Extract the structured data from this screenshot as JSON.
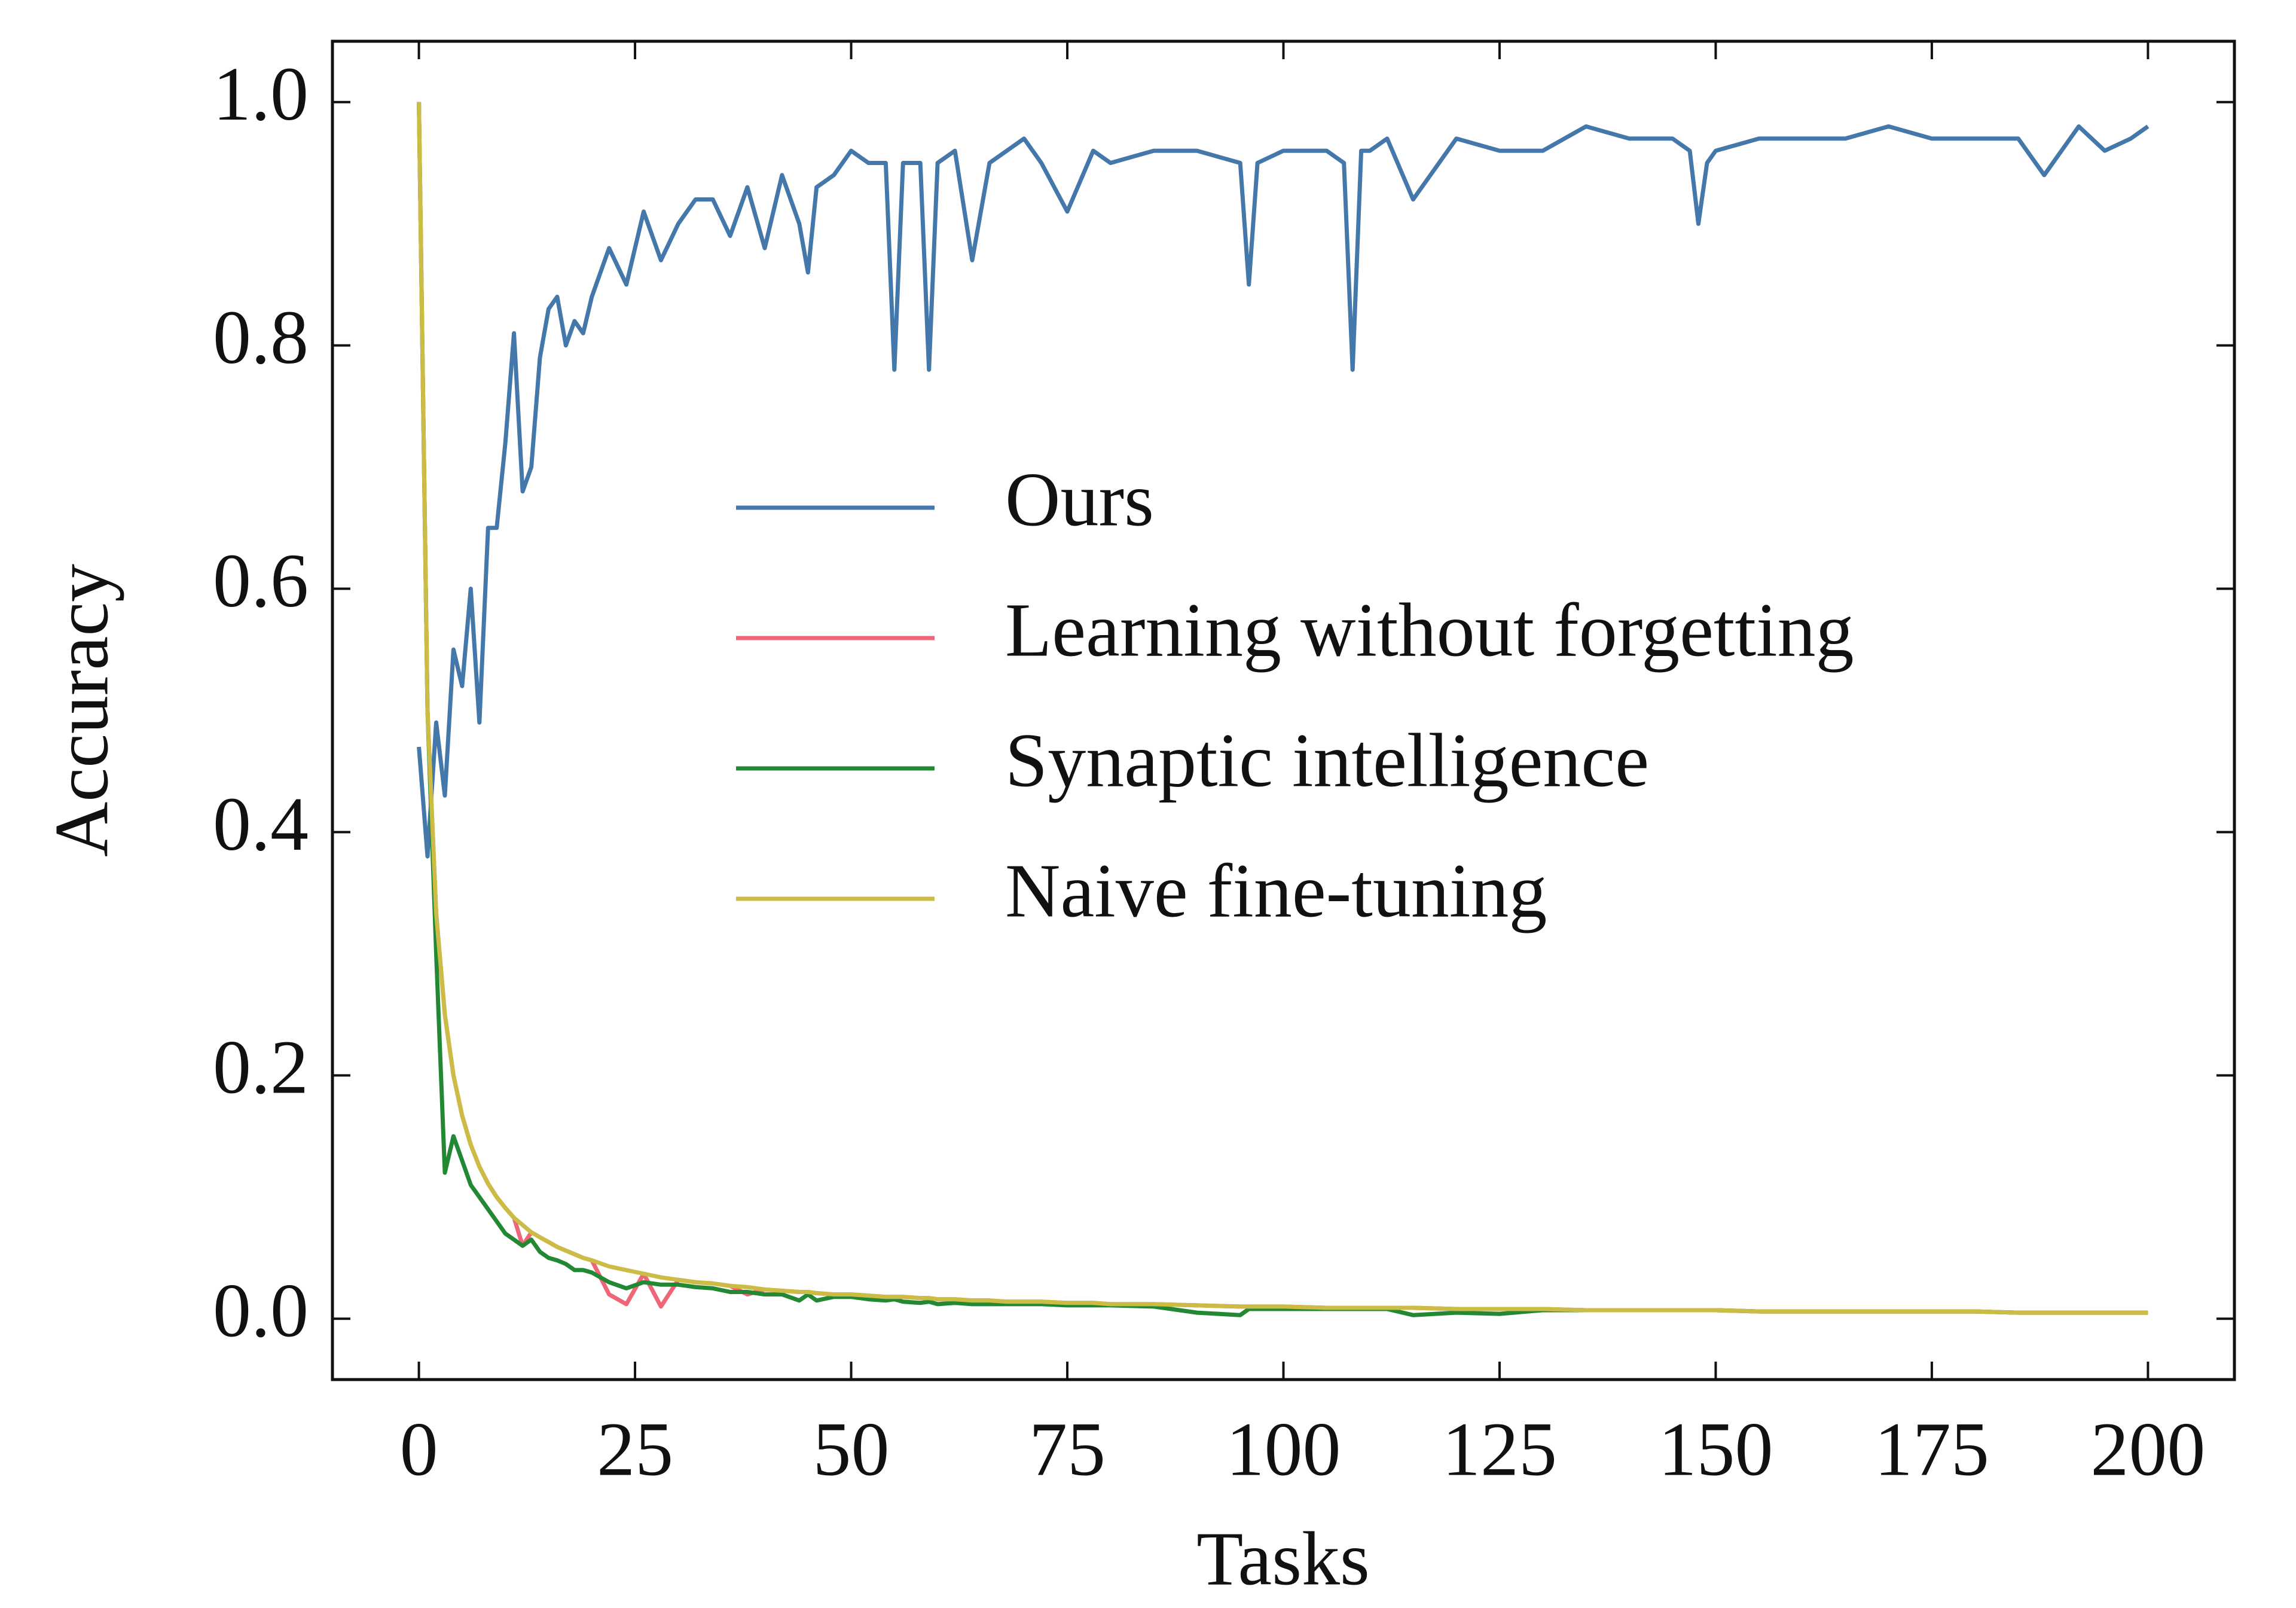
{
  "chart_data": {
    "type": "line",
    "x_label": "Tasks",
    "y_label": "Accuracy",
    "x": [
      0,
      1,
      2,
      3,
      4,
      5,
      6,
      7,
      8,
      9,
      10,
      11,
      12,
      13,
      14,
      15,
      16,
      17,
      18,
      19,
      20,
      22,
      24,
      26,
      28,
      30,
      32,
      34,
      36,
      38,
      40,
      42,
      44,
      45,
      46,
      48,
      50,
      52,
      54,
      55,
      56,
      58,
      59,
      60,
      62,
      64,
      66,
      68,
      70,
      72,
      75,
      78,
      80,
      85,
      90,
      95,
      96,
      97,
      100,
      105,
      107,
      108,
      109,
      110,
      112,
      115,
      120,
      125,
      130,
      135,
      140,
      145,
      147,
      148,
      149,
      150,
      155,
      160,
      165,
      170,
      175,
      180,
      185,
      188,
      190,
      192,
      195,
      198,
      200
    ],
    "series": [
      {
        "name": "Ours",
        "color": "#4477AA",
        "values": [
          0.47,
          0.38,
          0.49,
          0.43,
          0.55,
          0.52,
          0.6,
          0.49,
          0.65,
          0.65,
          0.72,
          0.81,
          0.68,
          0.7,
          0.79,
          0.83,
          0.84,
          0.8,
          0.82,
          0.81,
          0.84,
          0.88,
          0.85,
          0.91,
          0.87,
          0.9,
          0.92,
          0.92,
          0.89,
          0.93,
          0.88,
          0.94,
          0.9,
          0.86,
          0.93,
          0.94,
          0.96,
          0.95,
          0.95,
          0.78,
          0.95,
          0.95,
          0.78,
          0.95,
          0.96,
          0.87,
          0.95,
          0.96,
          0.97,
          0.95,
          0.91,
          0.96,
          0.95,
          0.96,
          0.96,
          0.95,
          0.85,
          0.95,
          0.96,
          0.96,
          0.95,
          0.78,
          0.96,
          0.96,
          0.97,
          0.92,
          0.97,
          0.96,
          0.96,
          0.98,
          0.97,
          0.97,
          0.96,
          0.9,
          0.95,
          0.96,
          0.97,
          0.97,
          0.97,
          0.98,
          0.97,
          0.97,
          0.97,
          0.94,
          0.96,
          0.98,
          0.96,
          0.97,
          0.98
        ]
      },
      {
        "name": "Learning without forgetting",
        "color": "#EE6677",
        "values": [
          1,
          0.5,
          0.333,
          0.25,
          0.2,
          0.167,
          0.143,
          0.125,
          0.111,
          0.1,
          0.091,
          0.083,
          0.06,
          0.071,
          0.067,
          0.063,
          0.059,
          0.056,
          0.053,
          0.05,
          0.048,
          0.02,
          0.012,
          0.037,
          0.01,
          0.032,
          0.03,
          0.029,
          0.027,
          0.02,
          0.024,
          0.023,
          0.022,
          0.022,
          0.021,
          0.02,
          0.02,
          0.019,
          0.018,
          0.018,
          0.018,
          0.017,
          0.017,
          0.016,
          0.016,
          0.015,
          0.015,
          0.014,
          0.014,
          0.014,
          0.013,
          0.013,
          0.012,
          0.012,
          0.011,
          0.01,
          0.01,
          0.01,
          0.01,
          0.009,
          0.009,
          0.009,
          0.009,
          0.009,
          0.009,
          0.009,
          0.008,
          0.008,
          0.008,
          0.007,
          0.007,
          0.007,
          0.007,
          0.007,
          0.007,
          0.007,
          0.006,
          0.006,
          0.006,
          0.006,
          0.006,
          0.006,
          0.005,
          0.005,
          0.005,
          0.005,
          0.005,
          0.005,
          0.005
        ]
      },
      {
        "name": "Synaptic intelligence",
        "color": "#228833",
        "values": [
          1,
          0.5,
          0.3,
          0.12,
          0.15,
          0.13,
          0.11,
          0.1,
          0.09,
          0.08,
          0.07,
          0.065,
          0.06,
          0.065,
          0.055,
          0.05,
          0.048,
          0.045,
          0.04,
          0.04,
          0.038,
          0.03,
          0.025,
          0.03,
          0.028,
          0.028,
          0.026,
          0.025,
          0.022,
          0.022,
          0.02,
          0.02,
          0.015,
          0.02,
          0.015,
          0.018,
          0.018,
          0.016,
          0.015,
          0.016,
          0.014,
          0.013,
          0.014,
          0.012,
          0.013,
          0.012,
          0.012,
          0.012,
          0.012,
          0.012,
          0.011,
          0.011,
          0.011,
          0.01,
          0.005,
          0.003,
          0.008,
          0.008,
          0.008,
          0.008,
          0.008,
          0.008,
          0.008,
          0.008,
          0.008,
          0.003,
          0.005,
          0.004,
          0.007,
          0.007,
          0.007,
          0.007,
          0.007,
          0.007,
          0.007,
          0.007,
          0.006,
          0.006,
          0.006,
          0.006,
          0.006,
          0.006,
          0.005,
          0.005,
          0.005,
          0.005,
          0.005,
          0.005,
          0.005
        ]
      },
      {
        "name": "Naive fine-tuning",
        "color": "#CCBB44",
        "values": [
          1,
          0.5,
          0.333,
          0.25,
          0.2,
          0.167,
          0.143,
          0.125,
          0.111,
          0.1,
          0.091,
          0.083,
          0.077,
          0.071,
          0.067,
          0.063,
          0.059,
          0.056,
          0.053,
          0.05,
          0.048,
          0.043,
          0.04,
          0.037,
          0.034,
          0.032,
          0.03,
          0.029,
          0.027,
          0.026,
          0.024,
          0.023,
          0.022,
          0.022,
          0.021,
          0.02,
          0.02,
          0.019,
          0.018,
          0.018,
          0.018,
          0.017,
          0.017,
          0.016,
          0.016,
          0.015,
          0.015,
          0.014,
          0.014,
          0.014,
          0.013,
          0.013,
          0.012,
          0.012,
          0.011,
          0.01,
          0.01,
          0.01,
          0.01,
          0.009,
          0.009,
          0.009,
          0.009,
          0.009,
          0.009,
          0.009,
          0.008,
          0.008,
          0.008,
          0.007,
          0.007,
          0.007,
          0.007,
          0.007,
          0.007,
          0.007,
          0.006,
          0.006,
          0.006,
          0.006,
          0.006,
          0.006,
          0.005,
          0.005,
          0.005,
          0.005,
          0.005,
          0.005,
          0.005
        ]
      }
    ],
    "xlim": [
      -10,
      210
    ],
    "ylim": [
      -0.05,
      1.05
    ],
    "xticks": [
      0,
      25,
      50,
      75,
      100,
      125,
      150,
      175,
      200
    ],
    "yticks": [
      {
        "value": 0,
        "label": "0.0"
      },
      {
        "value": 0.2,
        "label": "0.2"
      },
      {
        "value": 0.4,
        "label": "0.4"
      },
      {
        "value": 0.6,
        "label": "0.6"
      },
      {
        "value": 0.8,
        "label": "0.8"
      },
      {
        "value": 1,
        "label": "1.0"
      }
    ],
    "legend": "center right",
    "grid": false
  }
}
